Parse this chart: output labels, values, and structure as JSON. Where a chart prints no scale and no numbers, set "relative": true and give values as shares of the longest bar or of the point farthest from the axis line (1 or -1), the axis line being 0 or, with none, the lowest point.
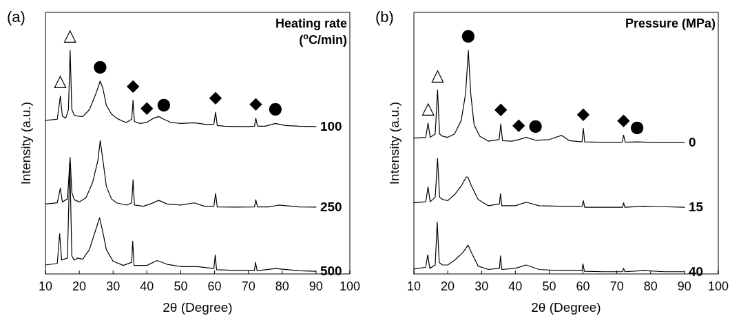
{
  "chart_data": [
    {
      "type": "line",
      "relative": true,
      "xlabel": "2θ (Degree)",
      "ylabel": "Intensity (a.u.)",
      "legend_title": "Heating rate\n($^{o}$C/min)",
      "xlim": [
        10,
        100
      ],
      "xticks": [
        10,
        20,
        30,
        40,
        50,
        60,
        70,
        80,
        90,
        100
      ],
      "annotations": [
        "(a)",
        {
          "text": "△",
          "x": 14.4,
          "y": 0.796
        },
        {
          "text": "△",
          "x": 17.3,
          "y": 1.0
        },
        {
          "text": "●",
          "x": 26.2,
          "y": 0.863
        },
        {
          "text": "◆",
          "x": 35.9,
          "y": 0.777
        },
        {
          "text": "◆",
          "x": 40,
          "y": 0.678
        },
        {
          "text": "●",
          "x": 45,
          "y": 0.692
        },
        {
          "text": "◆",
          "x": 60.3,
          "y": 0.723
        },
        {
          "text": "◆",
          "x": 72.2,
          "y": 0.697
        },
        {
          "text": "●",
          "x": 78,
          "y": 0.673
        }
      ],
      "series": [
        {
          "name": "100",
          "color": "#000000",
          "x": [
            10,
            13.5,
            14.4,
            15,
            16,
            16.8,
            17.3,
            17.8,
            18.5,
            19.5,
            21,
            23,
            25,
            26.2,
            27,
            28,
            29.5,
            31,
            33,
            34,
            35.5,
            35.9,
            36.3,
            38,
            40,
            42,
            43.5,
            45,
            47,
            50,
            54,
            58,
            59.8,
            60.3,
            60.8,
            63,
            66,
            70,
            71.8,
            72.2,
            72.7,
            75,
            78,
            81,
            85,
            90
          ],
          "values": [
            0.687,
            0.692,
            0.796,
            0.706,
            0.697,
            0.735,
            1.0,
            0.735,
            0.711,
            0.706,
            0.704,
            0.735,
            0.81,
            0.863,
            0.829,
            0.754,
            0.716,
            0.697,
            0.682,
            0.678,
            0.692,
            0.777,
            0.682,
            0.673,
            0.678,
            0.697,
            0.704,
            0.692,
            0.678,
            0.673,
            0.676,
            0.668,
            0.67,
            0.723,
            0.664,
            0.661,
            0.659,
            0.659,
            0.661,
            0.697,
            0.661,
            0.661,
            0.673,
            0.664,
            0.661,
            0.659
          ]
        },
        {
          "name": "250",
          "color": "#000000",
          "x": [
            10,
            13.5,
            14.4,
            15,
            16.5,
            17.3,
            17.8,
            18.5,
            20,
            22,
            24,
            25.5,
            26.2,
            27,
            28,
            29.5,
            31,
            34,
            35.5,
            35.9,
            36.3,
            39,
            41,
            43.5,
            46,
            50,
            54,
            57,
            59.8,
            60.3,
            60.8,
            66,
            71.8,
            72.2,
            72.7,
            76,
            79,
            85,
            90
          ],
          "values": [
            0.313,
            0.318,
            0.384,
            0.322,
            0.336,
            0.521,
            0.365,
            0.332,
            0.322,
            0.341,
            0.412,
            0.507,
            0.597,
            0.507,
            0.393,
            0.336,
            0.318,
            0.308,
            0.318,
            0.422,
            0.308,
            0.303,
            0.313,
            0.329,
            0.313,
            0.308,
            0.318,
            0.303,
            0.303,
            0.36,
            0.3,
            0.299,
            0.3,
            0.332,
            0.3,
            0.3,
            0.308,
            0.3,
            0.299
          ]
        },
        {
          "name": "500",
          "color": "#000000",
          "x": [
            10,
            13.5,
            14.2,
            14.8,
            16.5,
            17.2,
            17.8,
            18.5,
            19.5,
            21,
            23,
            25,
            26,
            27,
            28,
            30,
            33,
            35.5,
            35.8,
            36.2,
            40,
            43,
            46,
            50,
            55,
            59.8,
            60.2,
            60.6,
            66,
            71.8,
            72.1,
            72.6,
            78,
            85,
            90
          ],
          "values": [
            0.04,
            0.047,
            0.18,
            0.062,
            0.071,
            0.5,
            0.081,
            0.062,
            0.071,
            0.066,
            0.109,
            0.204,
            0.251,
            0.185,
            0.109,
            0.057,
            0.038,
            0.052,
            0.147,
            0.038,
            0.038,
            0.06,
            0.043,
            0.033,
            0.033,
            0.024,
            0.085,
            0.019,
            0.016,
            0.016,
            0.052,
            0.014,
            0.024,
            0.014,
            0.012
          ]
        }
      ]
    },
    {
      "type": "line",
      "relative": true,
      "xlabel": "2θ (Degree)",
      "ylabel": "Intensity (a.u.)",
      "legend_title": "Pressure (MPa)",
      "xlim": [
        10,
        100
      ],
      "xticks": [
        10,
        20,
        30,
        40,
        50,
        60,
        70,
        80,
        90,
        100
      ],
      "annotations": [
        "(b)",
        {
          "text": "△",
          "x": 14.2,
          "y": 0.675
        },
        {
          "text": "△",
          "x": 17.0,
          "y": 0.823
        },
        {
          "text": "●",
          "x": 26.1,
          "y": 1.0
        },
        {
          "text": "◆",
          "x": 35.7,
          "y": 0.671
        },
        {
          "text": "◆",
          "x": 41,
          "y": 0.601
        },
        {
          "text": "●",
          "x": 46,
          "y": 0.598
        },
        {
          "text": "◆",
          "x": 60.1,
          "y": 0.651
        },
        {
          "text": "◆",
          "x": 72.0,
          "y": 0.621
        },
        {
          "text": "●",
          "x": 76,
          "y": 0.591
        }
      ],
      "series": [
        {
          "name": "0",
          "color": "#000000",
          "x": [
            10,
            13.5,
            14.2,
            14.8,
            16.3,
            17.0,
            17.6,
            18.5,
            20,
            22,
            24,
            25.3,
            26.1,
            26.8,
            27.8,
            29.5,
            32,
            35.2,
            35.7,
            36.2,
            39,
            41,
            43.2,
            46,
            50,
            53.7,
            56,
            59.7,
            60.1,
            60.5,
            65,
            71.6,
            72.0,
            72.5,
            76,
            82,
            90
          ],
          "values": [
            0.608,
            0.611,
            0.675,
            0.611,
            0.626,
            0.823,
            0.626,
            0.616,
            0.611,
            0.626,
            0.687,
            0.808,
            1.0,
            0.808,
            0.667,
            0.616,
            0.594,
            0.601,
            0.671,
            0.596,
            0.594,
            0.601,
            0.611,
            0.598,
            0.601,
            0.62,
            0.596,
            0.591,
            0.651,
            0.591,
            0.589,
            0.589,
            0.621,
            0.589,
            0.591,
            0.588,
            0.588
          ]
        },
        {
          "name": "15",
          "color": "#000000",
          "x": [
            10,
            13.5,
            14.2,
            14.8,
            16.3,
            17.0,
            17.6,
            18.5,
            20,
            22,
            24,
            25.5,
            26.0,
            27,
            29,
            32,
            35.3,
            35.6,
            36.0,
            40,
            43.2,
            47,
            53,
            59.8,
            60.1,
            60.5,
            66,
            71.7,
            72.0,
            72.4,
            78,
            83,
            90
          ],
          "values": [
            0.318,
            0.323,
            0.389,
            0.323,
            0.343,
            0.517,
            0.343,
            0.333,
            0.328,
            0.354,
            0.394,
            0.434,
            0.432,
            0.394,
            0.333,
            0.305,
            0.313,
            0.359,
            0.305,
            0.305,
            0.321,
            0.305,
            0.303,
            0.303,
            0.328,
            0.298,
            0.298,
            0.298,
            0.318,
            0.298,
            0.303,
            0.301,
            0.298
          ]
        },
        {
          "name": "40",
          "color": "#000000",
          "x": [
            10,
            13.5,
            14.1,
            14.7,
            16.3,
            16.9,
            17.5,
            18.5,
            20,
            22,
            24.5,
            26.0,
            27,
            29,
            32,
            35.3,
            35.6,
            36.0,
            40,
            43.2,
            47,
            53,
            59.7,
            60.0,
            60.4,
            66,
            71.7,
            72.0,
            72.4,
            78,
            84,
            90
          ],
          "values": [
            0.022,
            0.03,
            0.086,
            0.025,
            0.04,
            0.232,
            0.051,
            0.04,
            0.04,
            0.061,
            0.096,
            0.129,
            0.096,
            0.035,
            0.02,
            0.025,
            0.081,
            0.02,
            0.025,
            0.04,
            0.02,
            0.015,
            0.015,
            0.045,
            0.012,
            0.01,
            0.01,
            0.025,
            0.01,
            0.015,
            0.01,
            0.01
          ]
        }
      ]
    }
  ]
}
